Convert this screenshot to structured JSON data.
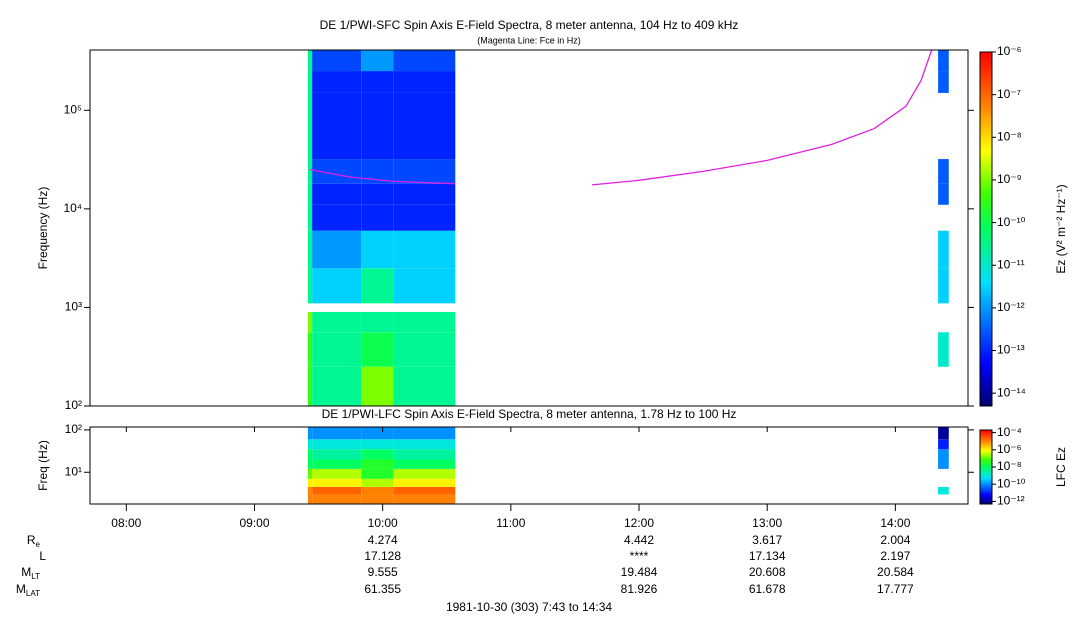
{
  "chart_data": [
    {
      "type": "spectrogram",
      "title": "DE 1/PWI-SFC  Spin Axis E-Field Spectra, 8 meter antenna, 104 Hz to 409 kHz",
      "subtitle": "(Magenta Line: Fce in Hz)",
      "ylabel": "Frequency (Hz)",
      "zlabel": "Ez (V² m⁻² Hz⁻¹)",
      "log_y": true,
      "xlim": [
        "07:43",
        "14:34"
      ],
      "ylim": [
        100,
        409000
      ],
      "yticks": [
        {
          "value": 100,
          "label": "10²"
        },
        {
          "value": 1000,
          "label": "10³"
        },
        {
          "value": 10000,
          "label": "10⁴"
        },
        {
          "value": 100000,
          "label": "10⁵"
        }
      ],
      "zlim": [
        5e-15,
        1e-06
      ],
      "zticks": [
        {
          "value": 1e-06,
          "label": "10⁻⁶"
        },
        {
          "value": 1e-07,
          "label": "10⁻⁷"
        },
        {
          "value": 1e-08,
          "label": "10⁻⁸"
        },
        {
          "value": 1e-09,
          "label": "10⁻⁹"
        },
        {
          "value": 1e-10,
          "label": "10⁻¹⁰"
        },
        {
          "value": 1e-11,
          "label": "10⁻¹¹"
        },
        {
          "value": 1e-12,
          "label": "10⁻¹²"
        },
        {
          "value": 1e-13,
          "label": "10⁻¹³"
        },
        {
          "value": 1e-14,
          "label": "10⁻¹⁴"
        }
      ],
      "x": [
        "09:25",
        "09:27",
        "09:50",
        "10:05",
        "10:34",
        "14:20",
        "14:25"
      ],
      "bins": [
        100,
        250,
        560,
        900,
        1100,
        2500,
        6000,
        11000,
        18000,
        32000,
        150000,
        250000,
        409000
      ],
      "z": [
        [
          3e-10,
          3e-11,
          1e-09,
          3e-11,
          null,
          null
        ],
        [
          3e-10,
          3e-11,
          1e-10,
          3e-11,
          null,
          1e-11
        ],
        [
          1e-09,
          3e-11,
          3e-11,
          3e-11,
          null,
          null
        ],
        [
          null,
          null,
          null,
          null,
          null,
          null
        ],
        [
          3e-11,
          3e-12,
          3e-11,
          3e-12,
          null,
          3e-12
        ],
        [
          3e-11,
          1e-12,
          3e-12,
          3e-12,
          null,
          3e-12
        ],
        [
          3e-11,
          1e-13,
          1e-13,
          1e-13,
          null,
          null
        ],
        [
          3e-11,
          1e-13,
          1e-13,
          1e-13,
          null,
          3e-13
        ],
        [
          3e-11,
          2e-13,
          2e-13,
          2e-13,
          null,
          3e-13
        ],
        [
          3e-11,
          1e-13,
          1e-13,
          1e-13,
          null,
          null
        ],
        [
          3e-11,
          1e-13,
          1e-13,
          1e-13,
          null,
          3e-13
        ],
        [
          3e-11,
          2e-13,
          1e-12,
          2e-13,
          null,
          3e-13
        ]
      ],
      "line": {
        "color": "#e020e0",
        "x": [
          "09:26",
          "09:45",
          "10:05",
          "10:34",
          null,
          "11:38",
          "12:00",
          "12:30",
          "13:00",
          "13:30",
          "13:50",
          "14:05",
          "14:12",
          "14:17"
        ],
        "y": [
          25000,
          21000,
          19000,
          18000,
          null,
          17500,
          19500,
          24000,
          31000,
          45000,
          65000,
          110000,
          200000,
          409000
        ]
      }
    },
    {
      "type": "spectrogram",
      "title": "DE 1/PWI-LFC  Spin Axis E-Field Spectra, 8 meter antenna, 1.78 Hz to 100 Hz",
      "ylabel": "Freq (Hz)",
      "zlabel": "LFC Ez",
      "log_y": true,
      "xlim": [
        "07:43",
        "14:34"
      ],
      "xticks": [
        "08:00",
        "09:00",
        "10:00",
        "11:00",
        "12:00",
        "13:00",
        "14:00"
      ],
      "ylim": [
        1.78,
        117
      ],
      "yticks": [
        {
          "value": 10,
          "label": "10¹"
        },
        {
          "value": 100,
          "label": "10²"
        }
      ],
      "zlim": [
        5e-13,
        0.0002
      ],
      "zticks": [
        {
          "value": 0.0001,
          "label": "10⁻⁴"
        },
        {
          "value": 1e-06,
          "label": "10⁻⁶"
        },
        {
          "value": 1e-08,
          "label": "10⁻⁸"
        },
        {
          "value": 1e-10,
          "label": "10⁻¹⁰"
        },
        {
          "value": 1e-12,
          "label": "10⁻¹²"
        }
      ],
      "x": [
        "09:25",
        "09:27",
        "09:50",
        "10:05",
        "10:34",
        "14:20",
        "14:25"
      ],
      "bins": [
        1.78,
        3,
        4.5,
        7,
        12,
        20,
        35,
        60,
        117
      ],
      "z": [
        [
          1e-05,
          1e-05,
          1e-05,
          1e-05,
          null,
          null
        ],
        [
          1e-05,
          2e-05,
          1e-05,
          2e-05,
          null,
          1e-09
        ],
        [
          1e-06,
          1e-06,
          3e-07,
          1e-06,
          null,
          null
        ],
        [
          1e-07,
          3e-07,
          3e-08,
          3e-07,
          null,
          null
        ],
        [
          1e-08,
          1e-08,
          3e-08,
          1e-08,
          null,
          1e-10
        ],
        [
          1e-08,
          3e-09,
          1e-08,
          3e-09,
          null,
          1e-10
        ],
        [
          1e-09,
          1e-09,
          1e-09,
          1e-09,
          null,
          1e-11
        ],
        [
          1e-10,
          1e-10,
          1e-10,
          1e-10,
          null,
          1e-12
        ]
      ]
    }
  ],
  "ephemeris": {
    "times": [
      "10:00",
      "12:00",
      "13:00",
      "14:00"
    ],
    "rows": [
      {
        "label": "R",
        "sub": "e",
        "values": [
          4.274,
          4.442,
          3.617,
          2.004
        ]
      },
      {
        "label": "L",
        "values": [
          17.128,
          "****",
          17.134,
          2.197
        ]
      },
      {
        "label": "M",
        "sub": "LT",
        "values": [
          9.555,
          19.484,
          20.608,
          20.584
        ]
      },
      {
        "label": "M",
        "sub": "LAT",
        "values": [
          61.355,
          81.926,
          61.678,
          17.777
        ]
      }
    ]
  },
  "footer": "1981-10-30 (303) 7:43 to 14:34"
}
